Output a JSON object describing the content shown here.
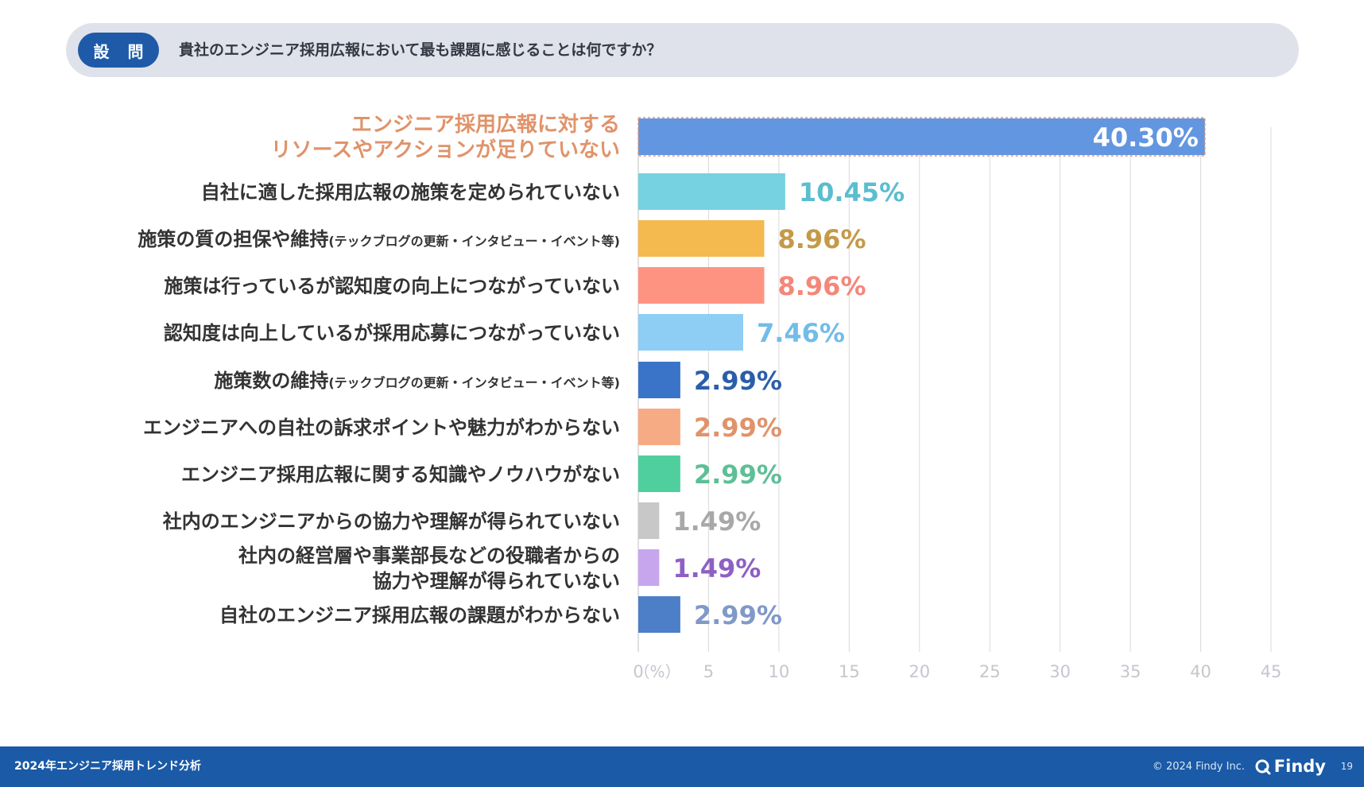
{
  "question": {
    "badge": "設 問",
    "text": "貴社のエンジニア採用広報において最も課題に感じることは何ですか？"
  },
  "chart_data": {
    "type": "bar",
    "orientation": "horizontal",
    "xlim": [
      0,
      45
    ],
    "ticks": [
      "0",
      "5",
      "10",
      "15",
      "20",
      "25",
      "30",
      "35",
      "40",
      "45"
    ],
    "unit_label": "（%）",
    "items": [
      {
        "lines": [
          "エンジニア採用広報に対する",
          "リソースやアクションが足りていない"
        ],
        "note": "",
        "value": 40.3,
        "label": "40.30%",
        "color": "#6396e0",
        "label_color": "#ffffff",
        "text_color": "#e0936a",
        "highlight": true
      },
      {
        "lines": [
          "自社に適した採用広報の施策を定められていない"
        ],
        "note": "",
        "value": 10.45,
        "label": "10.45%",
        "color": "#76d1e0",
        "label_color": "#5bbdd0",
        "text_color": "#333333",
        "highlight": false
      },
      {
        "lines": [
          "施策の質の担保や維持"
        ],
        "note": "(テックブログの更新・インタビュー・イベント等)",
        "value": 8.96,
        "label": "8.96%",
        "color": "#f4b94f",
        "label_color": "#c49a49",
        "text_color": "#333333",
        "highlight": false
      },
      {
        "lines": [
          "施策は行っているが認知度の向上につながっていない"
        ],
        "note": "",
        "value": 8.96,
        "label": "8.96%",
        "color": "#ff9382",
        "label_color": "#f4877a",
        "text_color": "#333333",
        "highlight": false
      },
      {
        "lines": [
          "認知度は向上しているが採用応募につながっていない"
        ],
        "note": "",
        "value": 7.46,
        "label": "7.46%",
        "color": "#8ecdf4",
        "label_color": "#72bce8",
        "text_color": "#333333",
        "highlight": false
      },
      {
        "lines": [
          "施策数の維持"
        ],
        "note": "(テックブログの更新・インタビュー・イベント等)",
        "value": 2.99,
        "label": "2.99%",
        "color": "#3a74c8",
        "label_color": "#2b5ea8",
        "text_color": "#333333",
        "highlight": false
      },
      {
        "lines": [
          "エンジニアへの自社の訴求ポイントや魅力がわからない"
        ],
        "note": "",
        "value": 2.99,
        "label": "2.99%",
        "color": "#f6ab84",
        "label_color": "#e0936a",
        "text_color": "#333333",
        "highlight": false
      },
      {
        "lines": [
          "エンジニア採用広報に関する知識やノウハウがない"
        ],
        "note": "",
        "value": 2.99,
        "label": "2.99%",
        "color": "#4fcf9e",
        "label_color": "#5dbf98",
        "text_color": "#333333",
        "highlight": false
      },
      {
        "lines": [
          "社内のエンジニアからの協力や理解が得られていない"
        ],
        "note": "",
        "value": 1.49,
        "label": "1.49%",
        "color": "#c8c8c8",
        "label_color": "#a8a8a8",
        "text_color": "#333333",
        "highlight": false
      },
      {
        "lines": [
          "社内の経営層や事業部長などの役職者からの",
          "協力や理解が得られていない"
        ],
        "note": "",
        "value": 1.49,
        "label": "1.49%",
        "color": "#c7a6ee",
        "label_color": "#8f5fc4",
        "text_color": "#333333",
        "highlight": false
      },
      {
        "lines": [
          "自社のエンジニア採用広報の課題がわからない"
        ],
        "note": "",
        "value": 2.99,
        "label": "2.99%",
        "color": "#4d7fc8",
        "label_color": "#7f99c8",
        "text_color": "#333333",
        "highlight": false
      }
    ]
  },
  "footer": {
    "title": "2024年エンジニア採用トレンド分析",
    "copyright": "© 2024 Findy Inc.",
    "logo": "Findy",
    "page": "19"
  },
  "colors": {
    "brand": "#1a5aa6",
    "grid": "#d9d9d9",
    "tick": "#c4c7ce"
  }
}
